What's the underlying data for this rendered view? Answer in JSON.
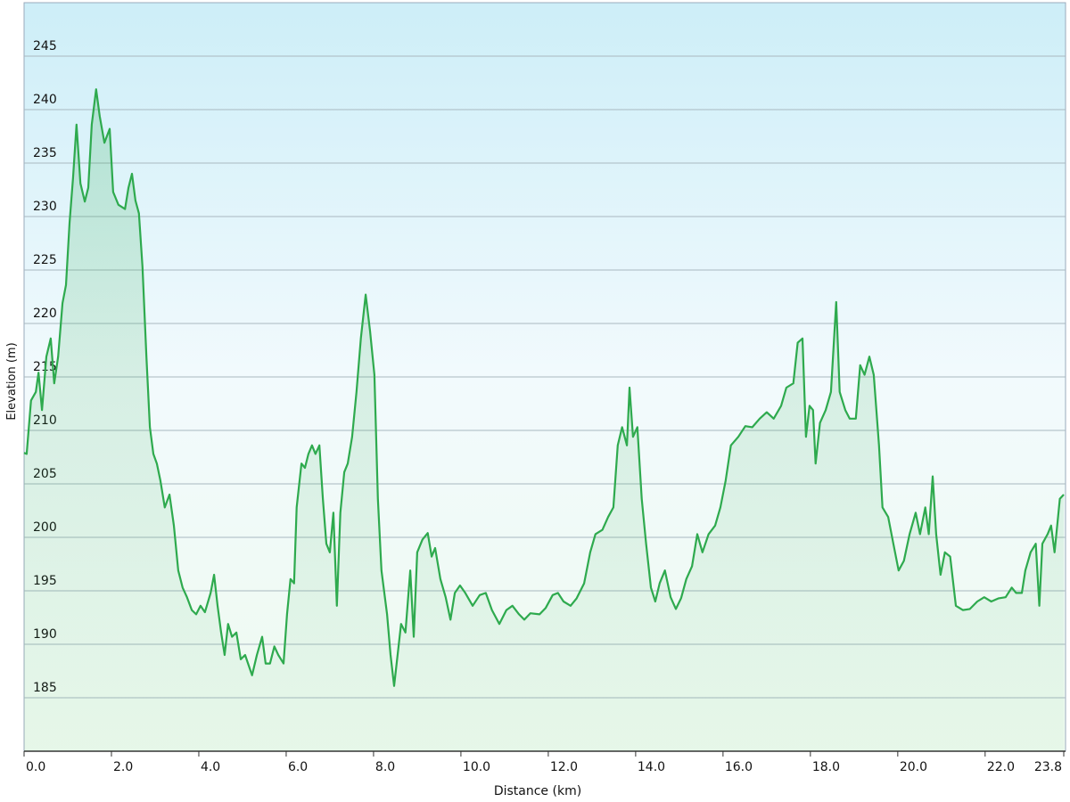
{
  "chart_data": {
    "type": "area",
    "x_label": "Distance (km)",
    "y_label": "Elevation (m)",
    "xlim": [
      0,
      23.8
    ],
    "ylim": [
      180,
      250
    ],
    "xticks": [
      {
        "value": 0,
        "label": "0.0"
      },
      {
        "value": 2,
        "label": "2.0"
      },
      {
        "value": 4,
        "label": "4.0"
      },
      {
        "value": 6,
        "label": "6.0"
      },
      {
        "value": 8,
        "label": "8.0"
      },
      {
        "value": 10,
        "label": "10.0"
      },
      {
        "value": 12,
        "label": "12.0"
      },
      {
        "value": 14,
        "label": "14.0"
      },
      {
        "value": 16,
        "label": "16.0"
      },
      {
        "value": 18,
        "label": "18.0"
      },
      {
        "value": 20,
        "label": "20.0"
      },
      {
        "value": 22,
        "label": "22.0"
      },
      23.8
    ],
    "yticks": [
      185,
      190,
      195,
      200,
      205,
      210,
      215,
      220,
      225,
      230,
      235,
      240,
      245
    ],
    "grid": true,
    "color": "#2eaa4e",
    "x": [
      0,
      0.06,
      0.16,
      0.27,
      0.33,
      0.41,
      0.51,
      0.61,
      0.69,
      0.78,
      0.88,
      0.96,
      1.04,
      1.12,
      1.2,
      1.29,
      1.39,
      1.47,
      1.55,
      1.65,
      1.73,
      1.84,
      1.96,
      2.04,
      2.16,
      2.31,
      2.39,
      2.47,
      2.55,
      2.63,
      2.71,
      2.8,
      2.88,
      2.96,
      3.04,
      3.12,
      3.22,
      3.33,
      3.43,
      3.53,
      3.63,
      3.73,
      3.84,
      3.94,
      4.04,
      4.14,
      4.27,
      4.35,
      4.43,
      4.51,
      4.59,
      4.67,
      4.76,
      4.86,
      4.96,
      5.06,
      5.16,
      5.22,
      5.33,
      5.45,
      5.53,
      5.63,
      5.73,
      5.82,
      5.94,
      6.02,
      6.1,
      6.18,
      6.24,
      6.35,
      6.43,
      6.51,
      6.59,
      6.67,
      6.76,
      6.84,
      6.92,
      7.0,
      7.08,
      7.16,
      7.24,
      7.33,
      7.41,
      7.51,
      7.61,
      7.71,
      7.82,
      7.92,
      8.02,
      8.1,
      8.18,
      8.31,
      8.39,
      8.47,
      8.55,
      8.63,
      8.73,
      8.84,
      8.92,
      9.0,
      9.12,
      9.24,
      9.33,
      9.41,
      9.53,
      9.65,
      9.76,
      9.86,
      9.98,
      10.1,
      10.27,
      10.43,
      10.57,
      10.71,
      10.88,
      11.04,
      11.18,
      11.33,
      11.45,
      11.59,
      11.8,
      11.94,
      12.1,
      12.22,
      12.35,
      12.51,
      12.65,
      12.82,
      12.96,
      13.08,
      13.24,
      13.37,
      13.49,
      13.59,
      13.69,
      13.8,
      13.86,
      13.94,
      14.04,
      14.14,
      14.24,
      14.35,
      14.45,
      14.55,
      14.67,
      14.8,
      14.92,
      15.04,
      15.16,
      15.29,
      15.41,
      15.53,
      15.67,
      15.82,
      15.94,
      16.06,
      16.18,
      16.35,
      16.51,
      16.67,
      16.84,
      17.0,
      17.16,
      17.33,
      17.45,
      17.61,
      17.71,
      17.82,
      17.9,
      17.98,
      18.06,
      18.12,
      18.22,
      18.35,
      18.47,
      18.59,
      18.67,
      18.8,
      18.9,
      19.04,
      19.14,
      19.24,
      19.35,
      19.45,
      19.57,
      19.65,
      19.78,
      19.9,
      20.02,
      20.14,
      20.27,
      20.41,
      20.51,
      20.63,
      20.71,
      20.8,
      20.88,
      20.98,
      21.08,
      21.2,
      21.33,
      21.49,
      21.65,
      21.82,
      21.98,
      22.14,
      22.31,
      22.47,
      22.61,
      22.71,
      22.84,
      22.92,
      23.04,
      23.16,
      23.24,
      23.31,
      23.43,
      23.51,
      23.59,
      23.71,
      23.8
    ],
    "values": [
      207.9,
      207.8,
      212.8,
      213.6,
      215.4,
      211.9,
      216.9,
      218.6,
      214.4,
      216.9,
      221.9,
      223.6,
      229.4,
      233.6,
      238.6,
      233.1,
      231.4,
      232.7,
      238.6,
      241.9,
      239.4,
      236.9,
      238.2,
      232.3,
      231.1,
      230.7,
      232.7,
      234.0,
      231.5,
      230.3,
      225.3,
      216.9,
      210.3,
      207.8,
      206.9,
      205.3,
      202.8,
      204.0,
      201.1,
      196.9,
      195.3,
      194.4,
      193.2,
      192.8,
      193.6,
      193.0,
      194.8,
      196.5,
      193.6,
      191.1,
      189.0,
      191.9,
      190.7,
      191.1,
      188.6,
      189.0,
      187.8,
      187.1,
      189.0,
      190.7,
      188.2,
      188.2,
      189.8,
      189.0,
      188.2,
      192.8,
      196.1,
      195.7,
      202.8,
      206.9,
      206.5,
      207.8,
      208.6,
      207.8,
      208.6,
      203.6,
      199.4,
      198.6,
      202.3,
      193.6,
      202.3,
      206.1,
      206.9,
      209.4,
      213.6,
      218.6,
      222.7,
      219.3,
      215.2,
      203.6,
      196.9,
      192.8,
      189.0,
      186.1,
      189.0,
      191.9,
      191.1,
      196.9,
      190.7,
      198.6,
      199.8,
      200.4,
      198.2,
      199.0,
      196.1,
      194.4,
      192.3,
      194.8,
      195.5,
      194.8,
      193.6,
      194.6,
      194.8,
      193.2,
      191.9,
      193.2,
      193.6,
      192.8,
      192.3,
      192.9,
      192.8,
      193.4,
      194.6,
      194.8,
      194.0,
      193.6,
      194.3,
      195.7,
      198.6,
      200.3,
      200.7,
      201.9,
      202.8,
      208.6,
      210.3,
      208.6,
      214.0,
      209.4,
      210.3,
      203.6,
      199.4,
      195.3,
      194.0,
      195.7,
      196.9,
      194.4,
      193.3,
      194.3,
      196.1,
      197.3,
      200.3,
      198.6,
      200.3,
      201.1,
      202.8,
      205.3,
      208.6,
      209.4,
      210.4,
      210.3,
      211.1,
      211.7,
      211.1,
      212.3,
      214.0,
      214.4,
      218.2,
      218.6,
      209.4,
      212.3,
      211.9,
      206.9,
      210.7,
      211.9,
      213.6,
      222.0,
      213.6,
      211.9,
      211.1,
      211.1,
      216.1,
      215.2,
      216.9,
      215.2,
      208.6,
      202.8,
      201.9,
      199.4,
      196.9,
      197.8,
      200.3,
      202.3,
      200.3,
      202.8,
      200.3,
      205.7,
      200.3,
      196.5,
      198.6,
      198.2,
      193.6,
      193.2,
      193.3,
      194.0,
      194.4,
      194.0,
      194.3,
      194.4,
      195.3,
      194.8,
      194.8,
      196.9,
      198.6,
      199.4,
      193.6,
      199.4,
      200.3,
      201.1,
      198.6,
      203.6,
      204.0
    ]
  }
}
